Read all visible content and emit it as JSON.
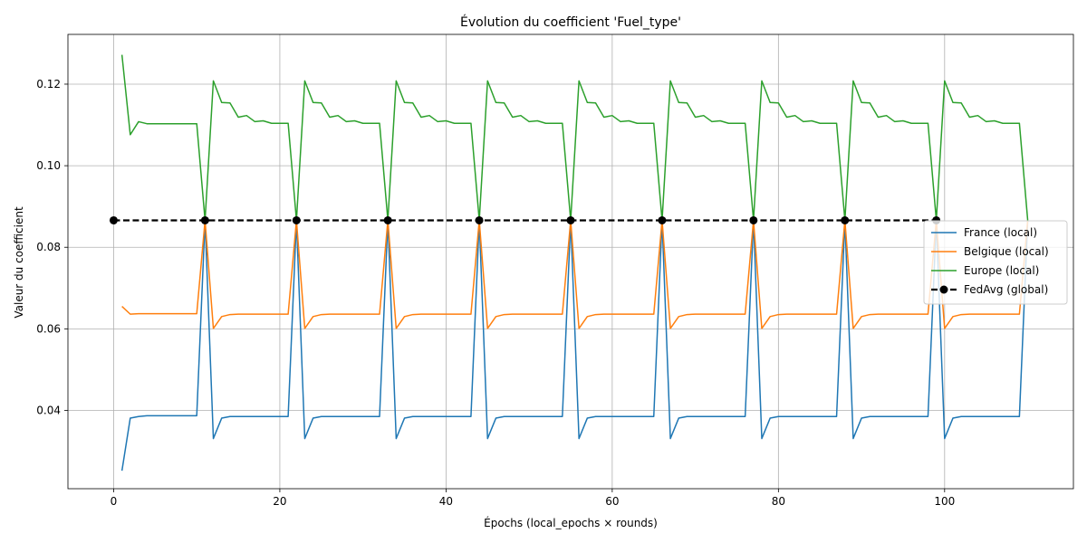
{
  "chart_data": {
    "type": "line",
    "title": "Évolution du coefficient 'Fuel_type'",
    "xlabel": "Épochs (local_epochs × rounds)",
    "ylabel": "Valeur du coefficient",
    "xlim": [
      -5.5,
      115.5
    ],
    "ylim": [
      0.0208,
      0.1322
    ],
    "xticks": [
      0,
      20,
      40,
      60,
      80,
      100
    ],
    "xtick_labels": [
      "0",
      "20",
      "40",
      "60",
      "80",
      "100"
    ],
    "yticks": [
      0.04,
      0.06,
      0.08,
      0.1,
      0.12
    ],
    "ytick_labels": [
      "0.04",
      "0.06",
      "0.08",
      "0.10",
      "0.12"
    ],
    "grid": true,
    "legend_position": "right",
    "rounds": 10,
    "local_epochs": 11,
    "series": [
      {
        "name": "France (local)",
        "color": "#1f77b4",
        "first_round": [
          0.0252,
          0.0381,
          0.0385,
          0.0387,
          0.0387,
          0.0387,
          0.0387,
          0.0387,
          0.0387,
          0.0387,
          0.0866
        ],
        "round_pattern": [
          0.0331,
          0.0381,
          0.0385,
          0.0385,
          0.0385,
          0.0385,
          0.0385,
          0.0385,
          0.0385,
          0.0385,
          0.0866
        ]
      },
      {
        "name": "Belgique (local)",
        "color": "#ff7f0e",
        "first_round": [
          0.0655,
          0.0636,
          0.0637,
          0.0637,
          0.0637,
          0.0637,
          0.0637,
          0.0637,
          0.0637,
          0.0637,
          0.0866
        ],
        "round_pattern": [
          0.0601,
          0.063,
          0.0635,
          0.0636,
          0.0636,
          0.0636,
          0.0636,
          0.0636,
          0.0636,
          0.0636,
          0.0866
        ]
      },
      {
        "name": "Europe (local)",
        "color": "#2ca02c",
        "first_round": [
          0.1272,
          0.1076,
          0.1108,
          0.1103,
          0.1103,
          0.1103,
          0.1103,
          0.1103,
          0.1103,
          0.1103,
          0.0866
        ],
        "round_pattern": [
          0.1208,
          0.1155,
          0.1154,
          0.1119,
          0.1123,
          0.1108,
          0.111,
          0.1104,
          0.1104,
          0.1104,
          0.0866
        ]
      }
    ],
    "global": {
      "name": "FedAvg (global)",
      "color": "#000000",
      "x": [
        0,
        11,
        22,
        33,
        44,
        55,
        66,
        77,
        88,
        99
      ],
      "y": [
        0.0866,
        0.0866,
        0.0866,
        0.0866,
        0.0866,
        0.0866,
        0.0866,
        0.0866,
        0.0866,
        0.0866
      ]
    }
  }
}
